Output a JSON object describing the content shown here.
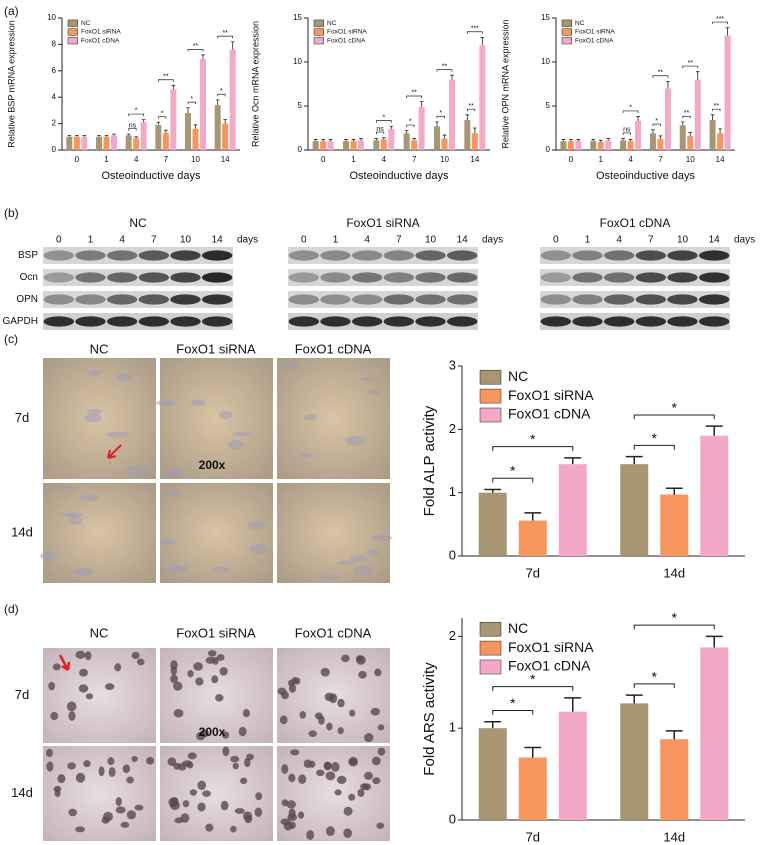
{
  "panel_labels": [
    "(a)",
    "(b)",
    "(c)",
    "(d)"
  ],
  "chart_data": [
    {
      "type": "bar",
      "ylabel": "Relative BSP mRNA expression",
      "xlabel": "Osteoinductive days",
      "categories": [
        "0",
        "1",
        "4",
        "7",
        "10",
        "14"
      ],
      "series": [
        {
          "name": "NC",
          "color": "#a89572",
          "values": [
            1.0,
            1.0,
            1.1,
            1.9,
            2.8,
            3.4
          ],
          "errors": [
            0.1,
            0.1,
            0.1,
            0.2,
            0.4,
            0.4
          ]
        },
        {
          "name": "FoxO1 siRNA",
          "color": "#f7955f",
          "values": [
            1.0,
            1.0,
            0.9,
            1.3,
            1.6,
            2.0
          ],
          "errors": [
            0.1,
            0.1,
            0.1,
            0.2,
            0.3,
            0.3
          ]
        },
        {
          "name": "FoxO1 cDNA",
          "color": "#f4a8c8",
          "values": [
            1.0,
            1.1,
            2.1,
            4.6,
            6.9,
            7.6
          ],
          "errors": [
            0.1,
            0.1,
            0.2,
            0.3,
            0.3,
            0.6
          ]
        }
      ],
      "ylim": [
        0,
        10
      ],
      "yticks": [
        0,
        2,
        4,
        6,
        8,
        10
      ],
      "legend": "upper left",
      "significance": [
        [],
        [],
        [
          "ns",
          "*"
        ],
        [
          "*",
          "**"
        ],
        [
          "*",
          "**"
        ],
        [
          "*",
          "**"
        ]
      ]
    },
    {
      "type": "bar",
      "ylabel": "Relative Ocn mRNA expression",
      "xlabel": "Osteoinductive days",
      "categories": [
        "0",
        "1",
        "4",
        "7",
        "10",
        "14"
      ],
      "series": [
        {
          "name": "NC",
          "color": "#a89572",
          "values": [
            1.0,
            1.0,
            1.1,
            1.9,
            2.7,
            3.4
          ],
          "errors": [
            0.2,
            0.2,
            0.2,
            0.3,
            0.5,
            0.6
          ]
        },
        {
          "name": "FoxO1 siRNA",
          "color": "#f7955f",
          "values": [
            1.0,
            1.0,
            1.2,
            1.1,
            1.3,
            1.9
          ],
          "errors": [
            0.2,
            0.2,
            0.2,
            0.2,
            0.4,
            0.6
          ]
        },
        {
          "name": "FoxO1 cDNA",
          "color": "#f4a8c8",
          "values": [
            1.0,
            1.1,
            2.4,
            4.9,
            8.0,
            11.9
          ],
          "errors": [
            0.2,
            0.2,
            0.3,
            0.6,
            0.5,
            0.9
          ]
        }
      ],
      "ylim": [
        0,
        15
      ],
      "yticks": [
        0,
        5,
        10,
        15
      ],
      "legend": "upper left",
      "significance": [
        [],
        [],
        [
          "ns",
          "*"
        ],
        [
          "*",
          "**"
        ],
        [
          "*",
          "**"
        ],
        [
          "**",
          "***"
        ]
      ]
    },
    {
      "type": "bar",
      "ylabel": "Relative OPN mRNA expression",
      "xlabel": "Osteoinductive days",
      "categories": [
        "0",
        "1",
        "4",
        "7",
        "10",
        "14"
      ],
      "series": [
        {
          "name": "NC",
          "color": "#a89572",
          "values": [
            1.0,
            1.0,
            1.1,
            1.9,
            2.8,
            3.4
          ],
          "errors": [
            0.2,
            0.2,
            0.2,
            0.4,
            0.4,
            0.6
          ]
        },
        {
          "name": "FoxO1 siRNA",
          "color": "#f7955f",
          "values": [
            1.0,
            0.9,
            1.0,
            1.3,
            1.6,
            1.9
          ],
          "errors": [
            0.2,
            0.2,
            0.2,
            0.3,
            0.4,
            0.5
          ]
        },
        {
          "name": "FoxO1 cDNA",
          "color": "#f4a8c8",
          "values": [
            1.0,
            1.1,
            3.3,
            7.0,
            8.0,
            13.0
          ],
          "errors": [
            0.2,
            0.2,
            0.5,
            0.8,
            0.9,
            0.9
          ]
        }
      ],
      "ylim": [
        0,
        15
      ],
      "yticks": [
        0,
        5,
        10,
        15
      ],
      "legend": "upper left",
      "significance": [
        [],
        [],
        [
          "ns",
          "*"
        ],
        [
          "*",
          "**"
        ],
        [
          "**",
          "**"
        ],
        [
          "**",
          "***"
        ]
      ]
    },
    {
      "type": "bar",
      "ylabel": "Fold  ALP activity",
      "categories": [
        "7d",
        "14d"
      ],
      "series": [
        {
          "name": "NC",
          "color": "#a89572",
          "values": [
            1.0,
            1.45
          ],
          "errors": [
            0.05,
            0.12
          ]
        },
        {
          "name": "FoxO1 siRNA",
          "color": "#f7955f",
          "values": [
            0.56,
            0.97
          ],
          "errors": [
            0.12,
            0.1
          ]
        },
        {
          "name": "FoxO1 cDNA",
          "color": "#f4a8c8",
          "values": [
            1.45,
            1.9
          ],
          "errors": [
            0.1,
            0.15
          ]
        }
      ],
      "ylim": [
        0,
        3
      ],
      "yticks": [
        0,
        1,
        2,
        3
      ],
      "legend": "upper left",
      "significance": [
        [
          "*",
          "*"
        ],
        [
          "*",
          "*"
        ]
      ]
    },
    {
      "type": "bar",
      "ylabel": "Fold  ARS activity",
      "categories": [
        "7d",
        "14d"
      ],
      "series": [
        {
          "name": "NC",
          "color": "#a89572",
          "values": [
            1.0,
            1.27
          ],
          "errors": [
            0.07,
            0.09
          ]
        },
        {
          "name": "FoxO1 siRNA",
          "color": "#f7955f",
          "values": [
            0.68,
            0.88
          ],
          "errors": [
            0.11,
            0.09
          ]
        },
        {
          "name": "FoxO1 cDNA",
          "color": "#f4a8c8",
          "values": [
            1.18,
            1.88
          ],
          "errors": [
            0.15,
            0.12
          ]
        }
      ],
      "ylim": [
        0,
        2.2
      ],
      "yticks": [
        0,
        1,
        2
      ],
      "legend": "upper left",
      "significance": [
        [
          "*",
          "*"
        ],
        [
          "*",
          "*"
        ]
      ]
    }
  ],
  "blots": {
    "groups": [
      {
        "title": "NC",
        "lanes": [
          "0",
          "1",
          "4",
          "7",
          "10",
          "14"
        ],
        "unit": "days"
      },
      {
        "title": "FoxO1 siRNA",
        "lanes": [
          "0",
          "1",
          "4",
          "7",
          "10",
          "14"
        ],
        "unit": "days"
      },
      {
        "title": "FoxO1 cDNA",
        "lanes": [
          "0",
          "1",
          "4",
          "7",
          "10",
          "14"
        ],
        "unit": "days"
      }
    ],
    "rows": [
      "BSP",
      "Ocn",
      "OPN",
      "GAPDH"
    ]
  },
  "micrographs": [
    {
      "columns": [
        "NC",
        "FoxO1 siRNA",
        "FoxO1 cDNA"
      ],
      "rows": [
        "7d",
        "14d"
      ],
      "magnification": "200x"
    },
    {
      "columns": [
        "NC",
        "FoxO1 siRNA",
        "FoxO1 cDNA"
      ],
      "rows": [
        "7d",
        "14d"
      ],
      "magnification": "200x"
    }
  ]
}
